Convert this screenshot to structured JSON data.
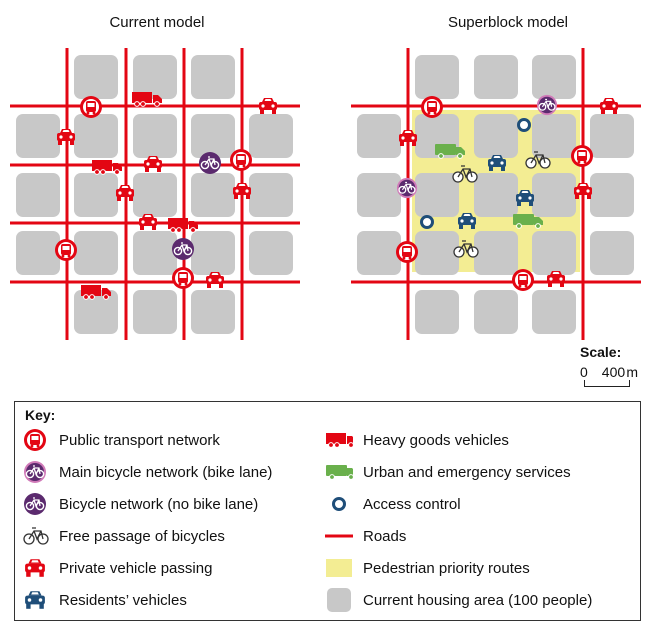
{
  "titles": {
    "current": "Current model",
    "superblock": "Superblock model"
  },
  "scale": {
    "label": "Scale:",
    "min": "0",
    "max": "400",
    "unit": "m"
  },
  "key": {
    "title": "Key:",
    "items": [
      {
        "id": "public-transport",
        "label": "Public transport network",
        "icon": "bus-icon",
        "color": "#e30613"
      },
      {
        "id": "main-bicycle",
        "label": "Main bicycle network (bike lane)",
        "icon": "bicycle-pink-icon",
        "color": "#d07ab8"
      },
      {
        "id": "bicycle-no-lane",
        "label": "Bicycle network (no bike lane)",
        "icon": "bicycle-purple-icon",
        "color": "#5b2a6e"
      },
      {
        "id": "free-bicycle",
        "label": "Free passage of bicycles",
        "icon": "bicycle-outline-icon",
        "color": "#333333"
      },
      {
        "id": "private-vehicle",
        "label": "Private vehicle passing",
        "icon": "car-red-icon",
        "color": "#e30613"
      },
      {
        "id": "residents-vehicle",
        "label": "Residents’ vehicles",
        "icon": "car-blue-icon",
        "color": "#1f4e79"
      },
      {
        "id": "heavy-goods",
        "label": "Heavy goods vehicles",
        "icon": "truck-red-icon",
        "color": "#e30613"
      },
      {
        "id": "urban-services",
        "label": "Urban and emergency services",
        "icon": "van-green-icon",
        "color": "#6ab04c"
      },
      {
        "id": "access-control",
        "label": "Access control",
        "icon": "ring-icon",
        "color": "#1f4e79"
      },
      {
        "id": "roads",
        "label": "Roads",
        "icon": "road-line-icon",
        "color": "#e30613"
      },
      {
        "id": "pedestrian",
        "label": "Pedestrian priority routes",
        "icon": "yellow-square-icon",
        "color": "#f3ed93"
      },
      {
        "id": "housing",
        "label": "Current housing area (100 people)",
        "icon": "grey-square-icon",
        "color": "#c8c8c8"
      }
    ]
  },
  "colors": {
    "road": "#e30613",
    "block": "#c8c8c8",
    "pedestrian": "#f3ed93",
    "blue": "#1f4e79",
    "green": "#6ab04c",
    "pink": "#d07ab8",
    "purple": "#5b2a6e"
  }
}
